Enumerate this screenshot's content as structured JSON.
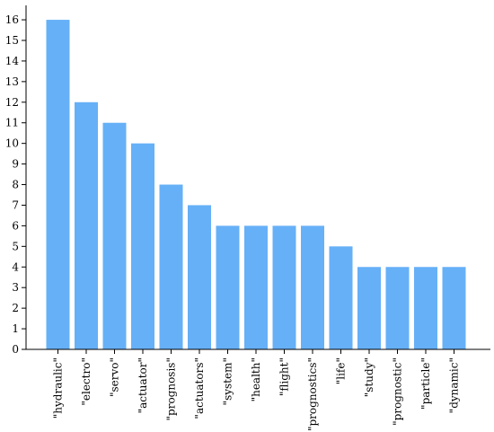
{
  "colors": {
    "bar": "#66b0f7",
    "axis": "#000000"
  },
  "chart_data": {
    "type": "bar",
    "title": "",
    "xlabel": "",
    "ylabel": "",
    "categories": [
      "\"hydraulic\"",
      "\"electro\"",
      "\"servo\"",
      "\"actuator\"",
      "\"prognosis\"",
      "\"actuators\"",
      "\"system\"",
      "\"health\"",
      "\"flight\"",
      "\"prognostics\"",
      "\"life\"",
      "\"study\"",
      "\"prognostic\"",
      "\"particle\"",
      "\"dynamic\""
    ],
    "values": [
      16,
      12,
      11,
      10,
      8,
      7,
      6,
      6,
      6,
      6,
      5,
      4,
      4,
      4,
      4
    ],
    "ylim": [
      0,
      16.7
    ],
    "yticks": [
      0,
      1,
      2,
      3,
      4,
      5,
      6,
      7,
      8,
      9,
      10,
      11,
      12,
      13,
      14,
      15,
      16
    ],
    "grid": false,
    "legend": "none"
  }
}
